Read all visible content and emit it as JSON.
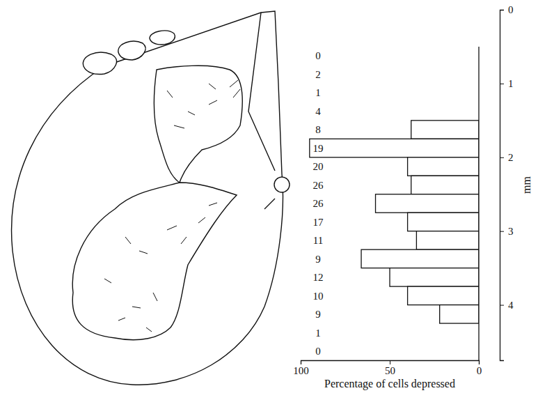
{
  "chart_data": {
    "type": "bar",
    "orientation": "horizontal",
    "x_label": "Percentage of cells depressed",
    "y_label": "mm",
    "bins": [
      0.5,
      0.75,
      1,
      1.25,
      1.5,
      1.75,
      2,
      2.25,
      2.5,
      2.75,
      3,
      3.25,
      3.5,
      3.75,
      4,
      4.25,
      4.5,
      4.75
    ],
    "values": [
      0,
      0,
      0,
      0,
      38,
      95,
      40,
      38,
      58,
      40,
      35,
      66,
      50,
      40,
      22,
      0,
      0
    ],
    "counts": [
      0,
      2,
      1,
      4,
      8,
      19,
      20,
      26,
      26,
      17,
      11,
      9,
      12,
      10,
      9,
      1,
      0
    ],
    "color": "#ffffff",
    "xlim": [
      100,
      0
    ],
    "xticks": [
      100,
      50,
      0
    ],
    "ylim": [
      0,
      4.75
    ],
    "yticks": [
      0,
      1,
      2,
      3,
      4
    ]
  }
}
